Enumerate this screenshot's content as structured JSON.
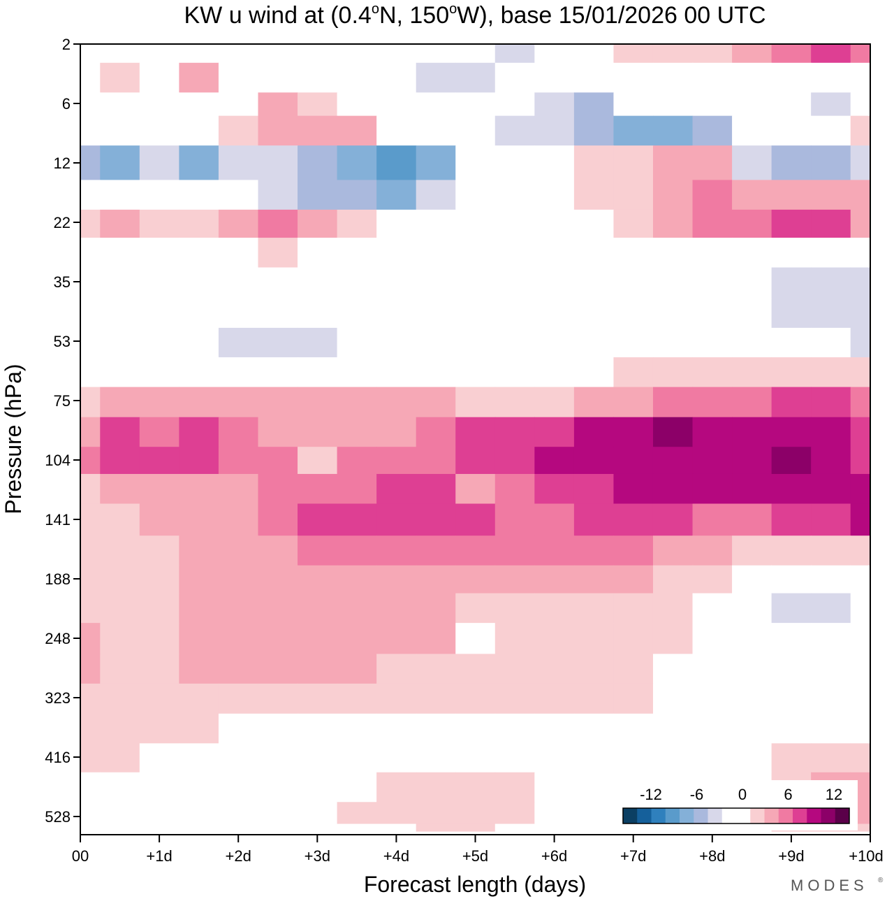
{
  "chart_data": {
    "type": "heatmap",
    "title": "KW u wind at (0.4°N, 150°W),  base 15/01/2026  00 UTC",
    "title_parts": {
      "prefix": "KW u wind at (0.4",
      "deg1": "o",
      "mid": "N, 150",
      "deg2": "o",
      "suffix": "W),  base 15/01/2026  00 UTC"
    },
    "xlabel": "Forecast length (days)",
    "ylabel": "Pressure (hPa)",
    "x_range_days": [
      0,
      10
    ],
    "x_tick_labels": [
      "00",
      "+1d",
      "+2d",
      "+3d",
      "+4d",
      "+5d",
      "+6d",
      "+7d",
      "+8d",
      "+9d",
      "+10d"
    ],
    "y_tick_labels": [
      "2",
      "6",
      "12",
      "22",
      "35",
      "53",
      "75",
      "104",
      "141",
      "188",
      "248",
      "323",
      "416",
      "528"
    ],
    "colorbar": {
      "tick_labels": [
        "-12",
        "-6",
        "0",
        "6",
        "12"
      ],
      "levels": [
        -16,
        -14,
        -12,
        -10,
        -8,
        -6,
        -4,
        -2,
        2,
        4,
        6,
        8,
        10,
        12,
        14
      ],
      "colors": [
        "#0b3f63",
        "#15609b",
        "#2f80bd",
        "#5a9bcb",
        "#84b0d8",
        "#aab9dd",
        "#d8d8ea",
        "#ffffff",
        "#ffffff",
        "#f9cfd2",
        "#f6a8b6",
        "#f07aa2",
        "#de3f93",
        "#b5087f",
        "#8c0068",
        "#5a0049"
      ]
    },
    "u_field": {
      "x_days": [
        0,
        0.5,
        1,
        1.5,
        2,
        2.5,
        3,
        3.5,
        4,
        4.5,
        5,
        5.5,
        6,
        6.5,
        7,
        7.5,
        8,
        8.5,
        9,
        9.5,
        10
      ],
      "pressure_hPa": [
        2,
        4,
        6,
        8,
        12,
        17,
        22,
        28,
        35,
        44,
        53,
        64,
        75,
        90,
        104,
        120,
        141,
        165,
        188,
        215,
        248,
        285,
        323,
        370,
        416,
        470,
        528,
        560
      ],
      "values": [
        [
          0,
          -2.5,
          -3,
          0,
          0,
          0,
          -3,
          -2.5,
          -3,
          -4,
          -3,
          -6,
          -3,
          -2,
          2.5,
          3,
          3,
          4,
          7,
          9,
          7
        ],
        [
          0,
          3,
          0,
          4.5,
          0,
          -2.5,
          -3,
          -3,
          -3,
          -5,
          -6,
          -4,
          -4,
          -3,
          0,
          0,
          -3,
          -2.5,
          -3,
          -3,
          -3
        ],
        [
          0,
          -3,
          -3,
          0,
          0,
          5,
          3,
          -3,
          -3,
          -3,
          -4,
          -4,
          -6,
          -8,
          -4,
          -3,
          -3,
          0,
          0,
          -5,
          -3
        ],
        [
          -3,
          0,
          0,
          0,
          2.5,
          4.5,
          4,
          5,
          0,
          -3,
          -3,
          -5,
          -5,
          -8,
          -9,
          -9,
          -8,
          -3,
          -4,
          -3,
          2.5
        ],
        [
          -7,
          -9,
          -5,
          -9,
          -5,
          -6,
          -8,
          -9,
          -12,
          -9,
          -3,
          -3,
          -2.5,
          3,
          3,
          5,
          5,
          -6,
          -7,
          -7,
          -5
        ],
        [
          -3,
          -4,
          -3,
          -3,
          -4,
          -6,
          -7,
          -8,
          -9,
          -6,
          -3,
          -3,
          -2.5,
          3,
          3,
          5,
          6,
          5,
          5,
          5,
          4
        ],
        [
          3,
          4,
          3,
          3,
          5,
          6,
          4,
          3,
          0,
          0,
          -3,
          -3,
          -3,
          -2.5,
          3,
          5,
          6,
          6,
          8,
          8,
          4
        ],
        [
          0,
          0,
          0,
          0,
          0,
          3,
          0,
          0,
          0,
          -2.5,
          -3,
          -3,
          -3,
          -3,
          -4,
          -3,
          -3,
          -3,
          -2.5,
          -3,
          -2.5
        ],
        [
          -4,
          0,
          -3,
          -3,
          -3,
          -3,
          -3,
          -2.5,
          -3,
          -3,
          -3,
          -3,
          -3,
          -3,
          -3,
          -3,
          -3,
          -4,
          -5,
          -5,
          -5
        ],
        [
          -4,
          -2.5,
          -3,
          -3,
          -4,
          -3,
          -3,
          -3,
          -3,
          -3,
          -3,
          -3,
          -3,
          -2.5,
          0,
          0,
          -3,
          -4,
          -5,
          -5,
          -6
        ],
        [
          0,
          0,
          -3,
          -3,
          -5,
          -5,
          -5,
          -4,
          -3,
          -3,
          -3,
          -3,
          0,
          0,
          0,
          0,
          -3,
          -3,
          -4,
          -4,
          -6
        ],
        [
          0,
          0,
          0,
          0,
          0,
          -3,
          -3,
          -3,
          -3,
          -3,
          -3,
          -3,
          0,
          0,
          3,
          3,
          3,
          3,
          3,
          3,
          3
        ],
        [
          3,
          4,
          4,
          5,
          5,
          4,
          4,
          4,
          4,
          4,
          3,
          3,
          3,
          4,
          5,
          6,
          6,
          7,
          8,
          8,
          7
        ],
        [
          5,
          8,
          7,
          8,
          7,
          5,
          4,
          5,
          5,
          6,
          8,
          9,
          9,
          10,
          10,
          12,
          10,
          10,
          11,
          10,
          9
        ],
        [
          6,
          9,
          8,
          9,
          7,
          6,
          3,
          6,
          6,
          7,
          8,
          9,
          10,
          11,
          11,
          11,
          10,
          11,
          12,
          10,
          9
        ],
        [
          3,
          4,
          5,
          5,
          5,
          6,
          6,
          7,
          8,
          8,
          5,
          7,
          8,
          9,
          10,
          10,
          10,
          10,
          11,
          11,
          11
        ],
        [
          3,
          3,
          4,
          5,
          5,
          6,
          8,
          8,
          8,
          9,
          8,
          7,
          7,
          8,
          8,
          8,
          7,
          7,
          8,
          9,
          10
        ],
        [
          3,
          3,
          3,
          5,
          5,
          5,
          6,
          6,
          6,
          6,
          6,
          6,
          6,
          6,
          6,
          5,
          4,
          3,
          3,
          3,
          3
        ],
        [
          3,
          3,
          3,
          4,
          5,
          5,
          5,
          4,
          4,
          4,
          4,
          4,
          4,
          4,
          4,
          3,
          2.5,
          -3,
          -4,
          -4,
          -4
        ],
        [
          3,
          3,
          3,
          4,
          5,
          5,
          5,
          4,
          4,
          4,
          3,
          3,
          3,
          3,
          3,
          3,
          0,
          -3,
          -5,
          -5,
          -4
        ],
        [
          4,
          3,
          3,
          5,
          5,
          5,
          5,
          4,
          4,
          4,
          0,
          3,
          3,
          3,
          3,
          3,
          0,
          -3,
          -4,
          -4,
          -3
        ],
        [
          4,
          3,
          3,
          5,
          5,
          5,
          4,
          4,
          3,
          3,
          3,
          3,
          3,
          3,
          3,
          0,
          0,
          0,
          -3,
          -3,
          -3
        ],
        [
          3,
          3,
          3,
          3,
          3,
          3,
          3,
          3,
          3,
          3,
          3,
          3,
          3,
          3,
          3,
          0,
          0,
          0,
          0,
          0,
          0
        ],
        [
          3,
          3,
          3,
          3,
          0,
          0,
          0,
          0,
          0,
          0,
          0,
          0,
          0,
          0,
          0,
          0,
          0,
          0,
          0,
          0,
          0
        ],
        [
          3,
          3,
          0,
          0,
          0,
          0,
          0,
          0,
          0,
          0,
          0,
          0,
          0,
          0,
          0,
          0,
          0,
          0,
          2.5,
          3,
          3
        ],
        [
          0,
          0,
          0,
          0,
          0,
          0,
          0,
          0,
          2.5,
          3,
          3,
          3,
          0,
          0,
          0,
          0,
          0,
          0,
          3,
          4,
          5
        ],
        [
          0,
          0,
          0,
          0,
          0,
          0,
          0,
          3,
          3,
          3,
          3,
          3,
          0,
          0,
          0,
          0,
          0,
          0,
          3,
          4,
          4
        ],
        [
          0,
          0,
          0,
          0,
          0,
          0,
          0,
          0,
          0,
          3,
          3,
          0,
          0,
          0,
          0,
          0,
          0,
          0,
          3,
          3,
          3
        ]
      ]
    }
  },
  "branding": {
    "logo_text": "MODES"
  }
}
